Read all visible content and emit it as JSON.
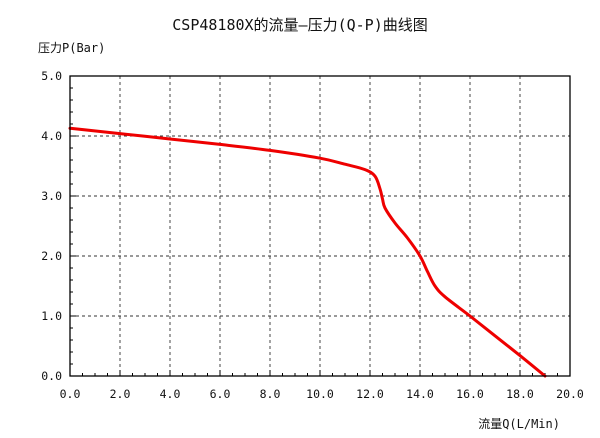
{
  "chart_data": {
    "type": "line",
    "title": "CSP48180X的流量—压力(Q-P)曲线图",
    "xlabel": "流量Q(L/Min)",
    "ylabel": "压力P(Bar)",
    "xlim": [
      0,
      20
    ],
    "ylim": [
      0,
      5
    ],
    "x_ticks": [
      "0.0",
      "2.0",
      "4.0",
      "6.0",
      "8.0",
      "10.0",
      "12.0",
      "14.0",
      "16.0",
      "18.0",
      "20.0"
    ],
    "y_ticks": [
      "0.0",
      "1.0",
      "2.0",
      "3.0",
      "4.0",
      "5.0"
    ],
    "grid": true,
    "line_color": "#ee0000",
    "series": [
      {
        "x": [
          0.0,
          2.0,
          4.0,
          6.0,
          8.0,
          10.0,
          11.0,
          11.8,
          12.2,
          12.4,
          12.5,
          12.6,
          13.0,
          13.5,
          14.0,
          14.3,
          14.6,
          15.0,
          16.0,
          17.0,
          18.0,
          19.0
        ],
        "y": [
          4.13,
          4.04,
          3.95,
          3.86,
          3.76,
          3.63,
          3.53,
          3.44,
          3.33,
          3.12,
          2.95,
          2.8,
          2.55,
          2.3,
          2.0,
          1.74,
          1.5,
          1.32,
          1.0,
          0.67,
          0.34,
          0.0
        ]
      }
    ]
  }
}
